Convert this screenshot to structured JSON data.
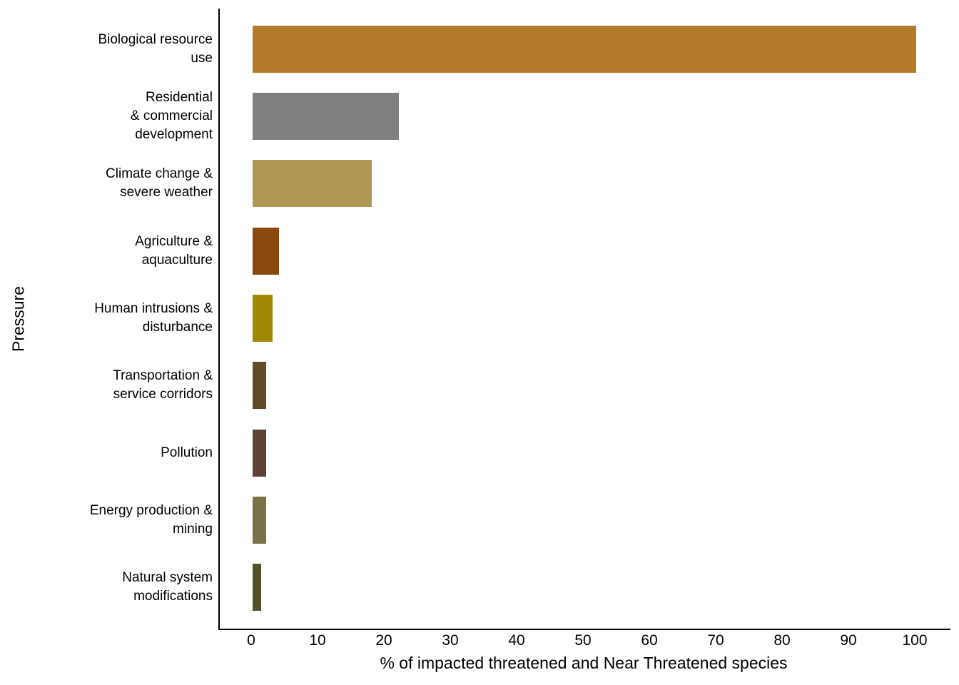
{
  "figure": {
    "background_color": "#FFFFFF",
    "axis_line_color": "#000000",
    "text_color": "#000000"
  },
  "chart_data": {
    "type": "bar",
    "orientation": "horizontal",
    "title": "",
    "xlabel": "% of impacted threatened and Near Threatened species",
    "ylabel": "Pressure",
    "xlim": [
      0,
      100
    ],
    "x_ticks": [
      0,
      10,
      20,
      30,
      40,
      50,
      60,
      70,
      80,
      90,
      100
    ],
    "grid": false,
    "legend": false,
    "categories": [
      "Biological resource use",
      "Residential & commercial development",
      "Climate change & severe weather",
      "Agriculture & aquaculture",
      "Human intrusions & disturbance",
      "Transportation & service corridors",
      "Pollution",
      "Energy production & mining",
      "Natural system modifications"
    ],
    "values": [
      100,
      22,
      18,
      4,
      3,
      2,
      2,
      2,
      1.3
    ],
    "bars": [
      {
        "category": "Biological resource use",
        "label_lines": [
          "Biological resource",
          "use"
        ],
        "value": 100,
        "color": "#B57B2B"
      },
      {
        "category": "Residential & commercial development",
        "label_lines": [
          "Residential",
          "& commercial",
          "development"
        ],
        "value": 22,
        "color": "#808080"
      },
      {
        "category": "Climate change & severe weather",
        "label_lines": [
          "Climate change &",
          "severe weather"
        ],
        "value": 18,
        "color": "#B29653"
      },
      {
        "category": "Agriculture & aquaculture",
        "label_lines": [
          "Agriculture &",
          "aquaculture"
        ],
        "value": 4,
        "color": "#8B4910"
      },
      {
        "category": "Human intrusions & disturbance",
        "label_lines": [
          "Human intrusions &",
          "disturbance"
        ],
        "value": 3,
        "color": "#A08907"
      },
      {
        "category": "Transportation & service corridors",
        "label_lines": [
          "Transportation &",
          "service corridors"
        ],
        "value": 2,
        "color": "#5F4C26"
      },
      {
        "category": "Pollution",
        "label_lines": [
          "Pollution"
        ],
        "value": 2,
        "color": "#5E4238"
      },
      {
        "category": "Energy production & mining",
        "label_lines": [
          "Energy production &",
          "mining"
        ],
        "value": 2,
        "color": "#7A7347"
      },
      {
        "category": "Natural system modifications",
        "label_lines": [
          "Natural system",
          "modifications"
        ],
        "value": 1.3,
        "color": "#545029"
      }
    ]
  }
}
